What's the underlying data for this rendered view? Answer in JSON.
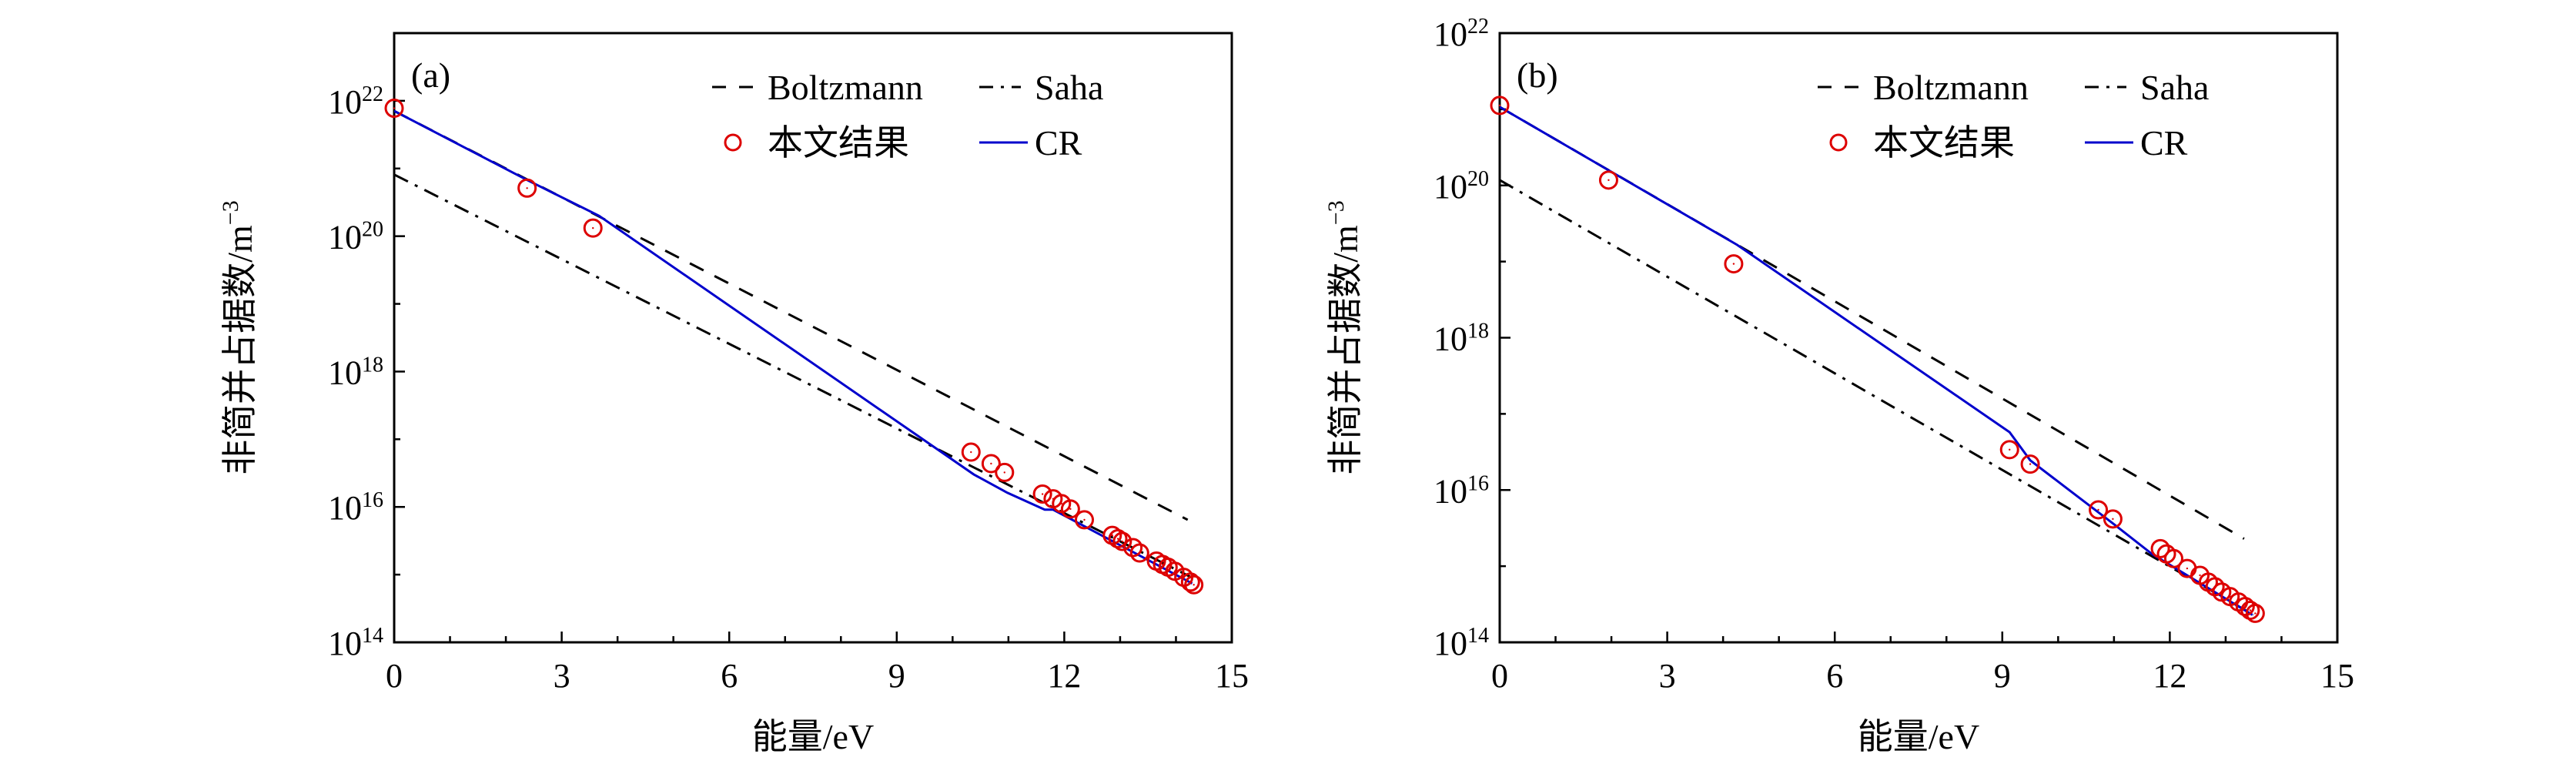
{
  "chart_data": [
    {
      "type": "scatter+line",
      "panel_label": "(a)",
      "xlabel": "能量/eV",
      "ylabel": "非简并占据数/m⁻³",
      "ylabel_main": "非简并占据数/m",
      "ylabel_exp": "−3",
      "xlim": [
        0,
        15
      ],
      "ylim_log10": [
        14,
        23
      ],
      "yscale": "log",
      "x_ticks": [
        "0",
        "3",
        "6",
        "9",
        "12",
        "15"
      ],
      "y_tick_exponents": [
        "22",
        "20",
        "18",
        "16",
        "14"
      ],
      "legend": {
        "placement": "top-right",
        "entries": [
          "Boltzmann",
          "Saha",
          "本文结果",
          "CR"
        ]
      },
      "series": [
        {
          "name": "Boltzmann",
          "style": "dashed",
          "color": "#000000",
          "x": [
            0,
            14.21
          ],
          "log10_y": [
            21.85,
            15.81
          ]
        },
        {
          "name": "Saha",
          "style": "dash-dot",
          "color": "#000000",
          "x": [
            0,
            14.3
          ],
          "log10_y": [
            20.91,
            14.95
          ]
        },
        {
          "name": "CR",
          "style": "solid",
          "color": "#0000cc",
          "x": [
            0,
            2.38,
            3.67,
            10.38,
            10.98,
            11.65,
            11.8,
            14.29
          ],
          "log10_y": [
            21.85,
            20.83,
            20.3,
            16.48,
            16.21,
            15.96,
            15.96,
            14.87
          ]
        },
        {
          "name": "本文结果",
          "style": "circle",
          "color": "#dd0000",
          "x": [
            0,
            2.38,
            3.56,
            10.33,
            10.69,
            10.93,
            11.61,
            11.8,
            11.95,
            12.11,
            12.36,
            12.86,
            12.96,
            13.04,
            13.23,
            13.35,
            13.65,
            13.76,
            13.86,
            13.98,
            14.14,
            14.26,
            14.32
          ],
          "log10_y": [
            21.89,
            20.71,
            20.12,
            16.81,
            16.64,
            16.51,
            16.19,
            16.12,
            16.05,
            15.97,
            15.81,
            15.58,
            15.53,
            15.49,
            15.4,
            15.32,
            15.2,
            15.15,
            15.11,
            15.05,
            14.96,
            14.89,
            14.85
          ]
        }
      ]
    },
    {
      "type": "scatter+line",
      "panel_label": "(b)",
      "xlabel": "能量/eV",
      "ylabel": "非简并占据数/m⁻³",
      "ylabel_main": "非简并占据数/m",
      "ylabel_exp": "−3",
      "xlim": [
        0,
        15
      ],
      "ylim_log10": [
        14,
        22
      ],
      "yscale": "log",
      "x_ticks": [
        "0",
        "3",
        "6",
        "9",
        "12",
        "15"
      ],
      "y_tick_exponents": [
        "22",
        "20",
        "18",
        "16",
        "14"
      ],
      "legend": {
        "placement": "top-right",
        "entries": [
          "Boltzmann",
          "Saha",
          "本文结果",
          "CR"
        ]
      },
      "series": [
        {
          "name": "Boltzmann",
          "style": "dashed",
          "color": "#000000",
          "x": [
            0,
            13.33
          ],
          "log10_y": [
            21.03,
            15.36
          ]
        },
        {
          "name": "Saha",
          "style": "dash-dot",
          "color": "#000000",
          "x": [
            0,
            13.5
          ],
          "log10_y": [
            20.07,
            14.36
          ]
        },
        {
          "name": "CR",
          "style": "solid",
          "color": "#0000cc",
          "x": [
            0,
            4.25,
            9.13,
            9.5,
            11.0,
            11.68,
            13.48
          ],
          "log10_y": [
            21.03,
            19.22,
            16.76,
            16.39,
            15.55,
            15.16,
            14.36
          ]
        },
        {
          "name": "本文结果",
          "style": "circle",
          "color": "#dd0000",
          "x": [
            0,
            1.95,
            4.19,
            9.13,
            9.5,
            10.72,
            10.98,
            11.83,
            11.94,
            12.07,
            12.31,
            12.54,
            12.69,
            12.81,
            12.93,
            13.08,
            13.23,
            13.35,
            13.44,
            13.53
          ],
          "log10_y": [
            21.05,
            20.07,
            18.97,
            16.53,
            16.34,
            15.74,
            15.62,
            15.23,
            15.16,
            15.1,
            14.97,
            14.88,
            14.79,
            14.73,
            14.66,
            14.6,
            14.53,
            14.47,
            14.42,
            14.38
          ]
        }
      ]
    }
  ]
}
